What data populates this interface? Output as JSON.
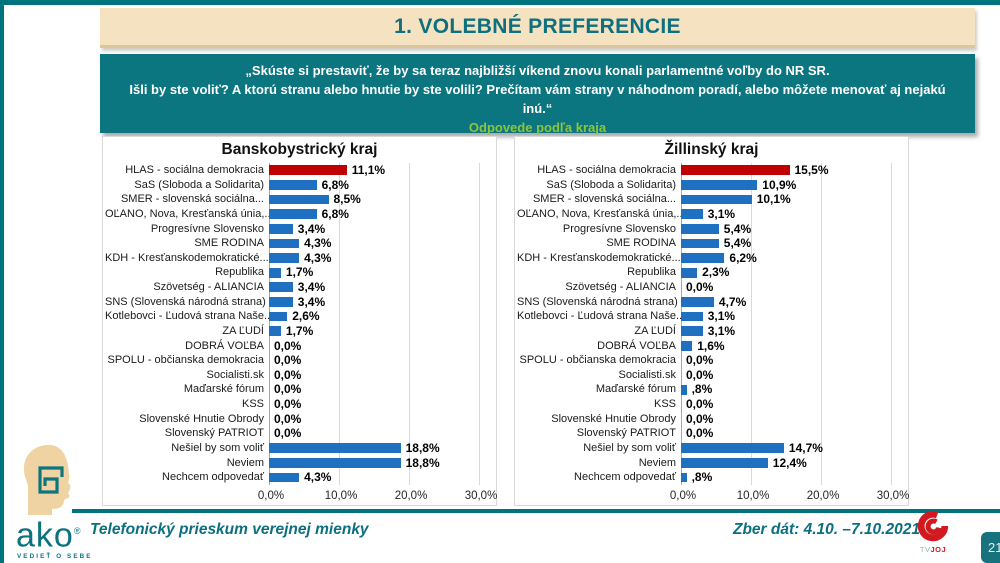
{
  "header": {
    "title": "1. VOLEBNÉ PREFERENCIE"
  },
  "question": {
    "line1": "„Skúste si prestaviť, že by sa teraz najbližší víkend znovu konali parlamentné voľby do NR SR.",
    "line2": "Išli by ste voliť? A ktorú stranu alebo hnutie by ste volili? Prečítam vám strany v náhodnom poradí, alebo môžete menovať aj nejakú inú.“",
    "line3": "Odpovede podľa kraja"
  },
  "footer": {
    "left_text": "Telefonický prieskum verejnej mienky",
    "right_text": "Zber dát: 4.10. –7.10.2021",
    "ako_word": "ako",
    "ako_reg": "®",
    "ako_tagline": "VEDIEŤ O SEBE",
    "tvjoj_tv": "TV",
    "tvjoj_joj": "JOJ"
  },
  "page": {
    "number": "21"
  },
  "colors": {
    "teal": "#0b7680",
    "cream": "#f5e2c0",
    "green_accent": "#8cc63f",
    "bar_blue": "#1f70c1",
    "bar_red": "#c00000"
  },
  "chart_data": [
    {
      "type": "bar",
      "orientation": "horizontal",
      "title": "Banskobystrický kraj",
      "xlim": [
        0,
        30
      ],
      "x_ticks": [
        "0,0%",
        "10,0%",
        "20,0%",
        "30,0%"
      ],
      "grid": true,
      "bar_color": "#1f70c1",
      "highlight_color": "#c00000",
      "highlight_index": 0,
      "categories": [
        "HLAS - sociálna demokracia",
        "SaS (Sloboda a Solidarita)",
        "SMER - slovenská sociálna...",
        "OĽANO, Nova, Kresťanská únia,...",
        "Progresívne Slovensko",
        "SME RODINA",
        "KDH - Kresťanskodemokratické...",
        "Republika",
        "Szövetség - ALIANCIA",
        "SNS (Slovenská národná strana)",
        "Kotlebovci - Ľudová strana Naše...",
        "ZA ĽUDÍ",
        "DOBRÁ VOĽBA",
        "SPOLU - občianska demokracia",
        "Socialisti.sk",
        "Maďarské fórum",
        "KSS",
        "Slovenské Hnutie Obrody",
        "Slovenský PATRIOT",
        "Nešiel by som voliť",
        "Neviem",
        "Nechcem odpovedať"
      ],
      "values": [
        11.1,
        6.8,
        8.5,
        6.8,
        3.4,
        4.3,
        4.3,
        1.7,
        3.4,
        3.4,
        2.6,
        1.7,
        0,
        0,
        0,
        0,
        0,
        0,
        0,
        18.8,
        18.8,
        4.3
      ],
      "labels": [
        "11,1%",
        "6,8%",
        "8,5%",
        "6,8%",
        "3,4%",
        "4,3%",
        "4,3%",
        "1,7%",
        "3,4%",
        "3,4%",
        "2,6%",
        "1,7%",
        "0,0%",
        "0,0%",
        "0,0%",
        "0,0%",
        "0,0%",
        "0,0%",
        "0,0%",
        "18,8%",
        "18,8%",
        "4,3%"
      ]
    },
    {
      "type": "bar",
      "orientation": "horizontal",
      "title": "Žillinský kraj",
      "xlim": [
        0,
        30
      ],
      "x_ticks": [
        "0,0%",
        "10,0%",
        "20,0%",
        "30,0%"
      ],
      "grid": true,
      "bar_color": "#1f70c1",
      "highlight_color": "#c00000",
      "highlight_index": 0,
      "categories": [
        "HLAS - sociálna demokracia",
        "SaS (Sloboda a Solidarita)",
        "SMER - slovenská sociálna...",
        "OĽANO, Nova, Kresťanská únia,...",
        "Progresívne Slovensko",
        "SME RODINA",
        "KDH - Kresťanskodemokratické...",
        "Republika",
        "Szövetség - ALIANCIA",
        "SNS (Slovenská národná strana)",
        "Kotlebovci - Ľudová strana Naše...",
        "ZA ĽUDÍ",
        "DOBRÁ VOĽBA",
        "SPOLU - občianska demokracia",
        "Socialisti.sk",
        "Maďarské fórum",
        "KSS",
        "Slovenské Hnutie Obrody",
        "Slovenský PATRIOT",
        "Nešiel by som voliť",
        "Neviem",
        "Nechcem odpovedať"
      ],
      "values": [
        15.5,
        10.9,
        10.1,
        3.1,
        5.4,
        5.4,
        6.2,
        2.3,
        0,
        4.7,
        3.1,
        3.1,
        1.6,
        0,
        0,
        0.8,
        0,
        0,
        0,
        14.7,
        12.4,
        0.8
      ],
      "labels": [
        "15,5%",
        "10,9%",
        "10,1%",
        "3,1%",
        "5,4%",
        "5,4%",
        "6,2%",
        "2,3%",
        "0,0%",
        "4,7%",
        "3,1%",
        "3,1%",
        "1,6%",
        "0,0%",
        "0,0%",
        ",8%",
        "0,0%",
        "0,0%",
        "0,0%",
        "14,7%",
        "12,4%",
        ",8%"
      ]
    }
  ]
}
